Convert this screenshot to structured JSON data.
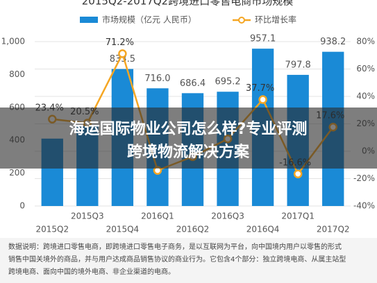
{
  "chart_data": {
    "type": "bar-line",
    "title": "2015Q2-2017Q2跨境进口零售电商市场规模",
    "categories": [
      "2015Q2",
      "2015Q3",
      "2015Q4",
      "2016Q1",
      "2016Q2",
      "2016Q3",
      "2016Q4",
      "2017Q1",
      "2017Q2"
    ],
    "series": [
      {
        "name": "市场规模（亿元 人民币）",
        "color": "#1a8ad6",
        "type": "bar",
        "values": [
          410,
          485,
          833.5,
          716,
          686.4,
          695.2,
          957.1,
          797.8,
          938.2
        ],
        "value_labels": [
          null,
          null,
          "833.5",
          "716.0",
          "686.4",
          "695.2",
          "957.1",
          "797.8",
          "938.2"
        ]
      },
      {
        "name": "环比增长率",
        "color": "#f5a623",
        "type": "line",
        "axis": "y2",
        "values": [
          23.4,
          20.5,
          71.2,
          -14,
          -4,
          9,
          37.7,
          -16.6,
          17.6
        ],
        "value_labels": [
          "23.4%",
          "20.5%",
          "71.2%",
          null,
          null,
          null,
          "37.7%",
          "-16.6%",
          "17.6%"
        ]
      }
    ],
    "ylim": [
      0,
      1000
    ],
    "yticks": [
      0,
      200,
      400,
      600,
      800,
      {
        "value": 1000,
        "label": "1,000"
      }
    ],
    "y2lim": [
      -40,
      80
    ],
    "y2ticks": [
      {
        "value": -40,
        "label": "-40%"
      },
      {
        "value": -20,
        "label": "-20%"
      },
      {
        "value": 0,
        "label": "0%"
      },
      {
        "value": 20,
        "label": "20%"
      },
      {
        "value": 40,
        "label": "40%"
      },
      {
        "value": 60,
        "label": "60%"
      },
      {
        "value": 80,
        "label": "80%"
      }
    ],
    "grid": true,
    "overlay": [
      "海运国际物业公司怎么样?专业评测",
      "跨境物流解决方案"
    ],
    "footnote": [
      "数据说明：跨境进口零售电商，即跨境进口零售电子商务，是以互联网为平台，向中国境内用户以零售的形式",
      "销售中国关境外的商品，并与用户达成商品销售协议的商业行为。它包含4个部分：独立跨境电商、从属主站型",
      "跨境电商、面向中国的境外电商、非企业渠道的电商。"
    ]
  }
}
